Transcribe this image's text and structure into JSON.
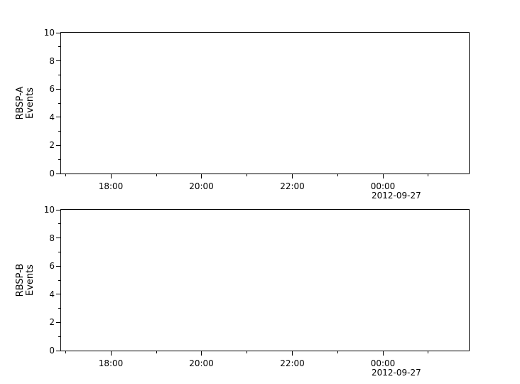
{
  "colors": {
    "background": "#ffffff",
    "axis": "#000000",
    "text": "#000000"
  },
  "panels": [
    {
      "key": "rbsp-a",
      "ylabel_line1": "RBSP-A",
      "ylabel_line2": "Events",
      "y_tick_labels": [
        "10",
        "8",
        "6",
        "4",
        "2",
        "0"
      ],
      "x_tick_labels": [
        "18:00",
        "20:00",
        "22:00",
        "00:00"
      ],
      "x_date_label": "2012-09-27"
    },
    {
      "key": "rbsp-b",
      "ylabel_line1": "RBSP-B",
      "ylabel_line2": "Events",
      "y_tick_labels": [
        "10",
        "8",
        "6",
        "4",
        "2",
        "0"
      ],
      "x_tick_labels": [
        "18:00",
        "20:00",
        "22:00",
        "00:00"
      ],
      "x_date_label": "2012-09-27"
    }
  ],
  "chart_data": [
    {
      "type": "line",
      "title": "",
      "xlabel": "",
      "ylabel": "RBSP-A Events",
      "ylim": [
        0,
        10
      ],
      "y_major_ticks": [
        0,
        2,
        4,
        6,
        8,
        10
      ],
      "y_minor_ticks": [
        1,
        3,
        5,
        7,
        9
      ],
      "x_tick_labels": [
        "18:00",
        "20:00",
        "22:00",
        "00:00"
      ],
      "x_minor_tick_labels": [
        "17:00",
        "19:00",
        "21:00",
        "23:00",
        "01:00"
      ],
      "x_date_annotation": "2012-09-27",
      "grid": false,
      "legend": null,
      "series": []
    },
    {
      "type": "line",
      "title": "",
      "xlabel": "",
      "ylabel": "RBSP-B Events",
      "ylim": [
        0,
        10
      ],
      "y_major_ticks": [
        0,
        2,
        4,
        6,
        8,
        10
      ],
      "y_minor_ticks": [
        1,
        3,
        5,
        7,
        9
      ],
      "x_tick_labels": [
        "18:00",
        "20:00",
        "22:00",
        "00:00"
      ],
      "x_minor_tick_labels": [
        "17:00",
        "19:00",
        "21:00",
        "23:00",
        "01:00"
      ],
      "x_date_annotation": "2012-09-27",
      "grid": false,
      "legend": null,
      "series": []
    }
  ]
}
